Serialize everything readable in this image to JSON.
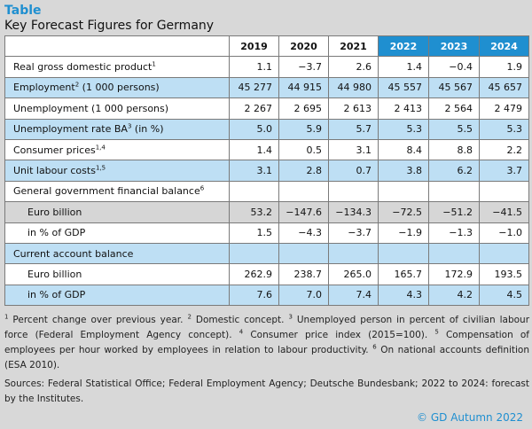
{
  "header": {
    "title": "Table",
    "subtitle": "Key Forecast Figures for Germany"
  },
  "table": {
    "years": [
      "2019",
      "2020",
      "2021",
      "2022",
      "2023",
      "2024"
    ],
    "forecast_years_color": "#1f8fd0",
    "rows": [
      {
        "label": "Real gross domestic product",
        "sup": "1",
        "values": [
          "1.1",
          "−3.7",
          "2.6",
          "1.4",
          "−0.4",
          "1.9"
        ]
      },
      {
        "label": "Employment",
        "sup": "2",
        "label_suffix": " (1 000 persons)",
        "values": [
          "45 277",
          "44 915",
          "44 980",
          "45 557",
          "45 567",
          "45 657"
        ]
      },
      {
        "label": "Unemployment (1 000 persons)",
        "values": [
          "2 267",
          "2 695",
          "2 613",
          "2 413",
          "2 564",
          "2 479"
        ]
      },
      {
        "label": "Unemployment rate BA",
        "sup": "3",
        "label_suffix": " (in %)",
        "values": [
          "5.0",
          "5.9",
          "5.7",
          "5.3",
          "5.5",
          "5.3"
        ]
      },
      {
        "label": "Consumer prices",
        "sup": "1,4",
        "values": [
          "1.4",
          "0.5",
          "3.1",
          "8.4",
          "8.8",
          "2.2"
        ]
      },
      {
        "label": "Unit labour costs",
        "sup": "1,5",
        "values": [
          "3.1",
          "2.8",
          "0.7",
          "3.8",
          "6.2",
          "3.7"
        ]
      },
      {
        "label": "General government financial balance",
        "sup": "6",
        "values": [
          "",
          "",
          "",
          "",
          "",
          ""
        ]
      },
      {
        "label": "Euro billion",
        "values": [
          "53.2",
          "−147.6",
          "−134.3",
          "−72.5",
          "−51.2",
          "−41.5"
        ]
      },
      {
        "label": "in % of GDP",
        "values": [
          "1.5",
          "−4.3",
          "−3.7",
          "−1.9",
          "−1.3",
          "−1.0"
        ]
      },
      {
        "label": "Current account balance",
        "values": [
          "",
          "",
          "",
          "",
          "",
          ""
        ]
      },
      {
        "label": "Euro billion",
        "values": [
          "262.9",
          "238.7",
          "265.0",
          "165.7",
          "172.9",
          "193.5"
        ]
      },
      {
        "label": "in % of GDP",
        "values": [
          "7.6",
          "7.0",
          "7.4",
          "4.3",
          "4.2",
          "4.5"
        ]
      }
    ]
  },
  "footnotes": [
    {
      "num": "1",
      "text": " Percent change over previous year. "
    },
    {
      "num": "2",
      "text": " Domestic concept. "
    },
    {
      "num": "3",
      "text": " Unemployed person in percent of civilian labour force (Federal Employment Agency concept). "
    },
    {
      "num": "4",
      "text": " Consumer price index (2015=100). "
    },
    {
      "num": "5",
      "text": " Compensation of employees per hour worked by employees in relation to labour productivity. "
    },
    {
      "num": "6",
      "text": " On national accounts definition (ESA 2010)."
    }
  ],
  "sources": "Sources: Federal Statistical Office; Federal Employment Agency; Deutsche Bundesbank; 2022 to 2024: forecast by the Institutes.",
  "copyright": "© GD Autumn 2022"
}
